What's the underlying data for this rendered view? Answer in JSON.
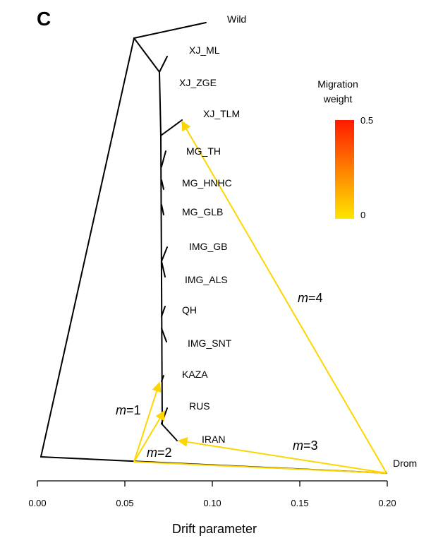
{
  "panel_label": "C",
  "tips": [
    {
      "label": "Wild"
    },
    {
      "label": "XJ_ML"
    },
    {
      "label": "XJ_ZGE"
    },
    {
      "label": "XJ_TLM"
    },
    {
      "label": "MG_TH"
    },
    {
      "label": "MG_HNHC"
    },
    {
      "label": "MG_GLB"
    },
    {
      "label": "IMG_GB"
    },
    {
      "label": "IMG_ALS"
    },
    {
      "label": "QH"
    },
    {
      "label": "IMG_SNT"
    },
    {
      "label": "KAZA"
    },
    {
      "label": "RUS"
    },
    {
      "label": "IRAN"
    },
    {
      "label": "Drom"
    }
  ],
  "migration_edges": [
    {
      "var": "m",
      "eq": "=1"
    },
    {
      "var": "m",
      "eq": "=2"
    },
    {
      "var": "m",
      "eq": "=3"
    },
    {
      "var": "m",
      "eq": "=4"
    }
  ],
  "legend": {
    "title_line1": "Migration",
    "title_line2": "weight",
    "max_label": "0.5",
    "min_label": "0",
    "color_top": "#ff1a00",
    "color_bottom": "#ffe600"
  },
  "axis": {
    "title": "Drift parameter",
    "ticks": [
      "0.00",
      "0.05",
      "0.10",
      "0.15",
      "0.20"
    ]
  },
  "colors": {
    "tree": "#000000",
    "migration": "#ffd500"
  }
}
